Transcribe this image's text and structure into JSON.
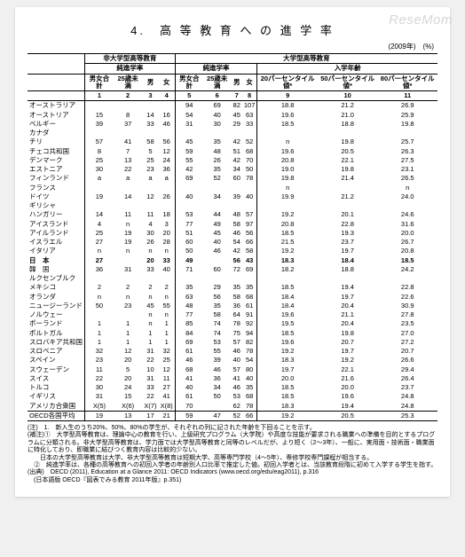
{
  "watermark": "ReseMom",
  "title": "4.　高 等 教 育 へ の 進 学 率",
  "unit": "(2009年)　(%)",
  "headers": {
    "nonUniv": "非大学型高等教育",
    "univ": "大学型高等教育",
    "enrollA": "純進学率",
    "enrollB": "純進学率",
    "age": "入学年齢",
    "sub": [
      "男女合計",
      "25歳未満",
      "男",
      "女",
      "男女合計",
      "25歳未満",
      "男",
      "女",
      "20パーセンタイル値*",
      "50パーセンタイル値*",
      "80パーセンタイル値*"
    ],
    "nums": [
      "1",
      "2",
      "3",
      "4",
      "5",
      "6",
      "7",
      "8",
      "9",
      "10",
      "11"
    ]
  },
  "rows": [
    [
      "オーストラリア",
      "",
      "",
      "",
      "",
      "94",
      "69",
      "82",
      "107",
      "18.8",
      "21.2",
      "26.9"
    ],
    [
      "オーストリア",
      "15",
      "8",
      "14",
      "16",
      "54",
      "40",
      "45",
      "63",
      "19.6",
      "21.0",
      "25.9"
    ],
    [
      "ベルギー",
      "39",
      "37",
      "33",
      "46",
      "31",
      "30",
      "29",
      "33",
      "18.5",
      "18.8",
      "19.8"
    ],
    [
      "カナダ",
      "",
      "",
      "",
      "",
      "",
      "",
      "",
      "",
      "",
      "",
      ""
    ],
    [
      "チリ",
      "57",
      "41",
      "58",
      "56",
      "45",
      "35",
      "42",
      "52",
      "n",
      "19.8",
      "25.7"
    ],
    [
      "チェコ共和国",
      "8",
      "7",
      "5",
      "12",
      "59",
      "48",
      "51",
      "68",
      "19.6",
      "20.5",
      "26.3"
    ],
    [
      "デンマーク",
      "25",
      "13",
      "25",
      "24",
      "55",
      "26",
      "42",
      "70",
      "20.8",
      "22.1",
      "27.5"
    ],
    [
      "エストニア",
      "30",
      "22",
      "23",
      "36",
      "42",
      "35",
      "34",
      "50",
      "19.0",
      "19.8",
      "23.1"
    ],
    [
      "フィンランド",
      "a",
      "a",
      "a",
      "a",
      "69",
      "52",
      "60",
      "78",
      "19.8",
      "21.4",
      "26.5"
    ],
    [
      "フランス",
      "",
      "",
      "",
      "",
      "",
      "",
      "",
      "",
      "n",
      "",
      "n"
    ],
    [
      "ドイツ",
      "19",
      "14",
      "12",
      "26",
      "40",
      "34",
      "39",
      "40",
      "19.9",
      "21.2",
      "24.0"
    ],
    [
      "ギリシャ",
      "",
      "",
      "",
      "",
      "",
      "",
      "",
      "",
      "",
      "",
      ""
    ],
    [
      "ハンガリー",
      "14",
      "11",
      "11",
      "18",
      "53",
      "44",
      "48",
      "57",
      "19.2",
      "20.1",
      "24.6"
    ],
    [
      "アイスランド",
      "4",
      "n",
      "4",
      "3",
      "77",
      "49",
      "58",
      "97",
      "20.8",
      "22.8",
      "31.6"
    ],
    [
      "アイルランド",
      "25",
      "19",
      "30",
      "20",
      "51",
      "45",
      "46",
      "56",
      "18.5",
      "19.3",
      "20.0"
    ],
    [
      "イスラエル",
      "27",
      "19",
      "26",
      "28",
      "60",
      "40",
      "54",
      "66",
      "21.5",
      "23.7",
      "26.7"
    ],
    [
      "イタリア",
      "n",
      "n",
      "n",
      "n",
      "50",
      "46",
      "42",
      "58",
      "19.2",
      "19.7",
      "20.8"
    ],
    [
      "日　本",
      "27",
      "",
      "20",
      "33",
      "49",
      "",
      "56",
      "43",
      "18.3",
      "18.4",
      "18.5"
    ],
    [
      "韓　国",
      "36",
      "31",
      "33",
      "40",
      "71",
      "60",
      "72",
      "69",
      "18.2",
      "18.8",
      "24.2"
    ],
    [
      "ルクセンブルク",
      "",
      "",
      "",
      "",
      "",
      "",
      "",
      "",
      "",
      "",
      ""
    ],
    [
      "メキシコ",
      "2",
      "2",
      "2",
      "2",
      "35",
      "29",
      "35",
      "35",
      "18.5",
      "19.4",
      "22.8"
    ],
    [
      "オランダ",
      "n",
      "n",
      "n",
      "n",
      "63",
      "56",
      "58",
      "68",
      "18.4",
      "19.7",
      "22.6"
    ],
    [
      "ニュージーランド",
      "50",
      "23",
      "45",
      "55",
      "48",
      "35",
      "36",
      "61",
      "18.4",
      "20.4",
      "30.9"
    ],
    [
      "ノルウェー",
      "",
      "",
      "n",
      "n",
      "77",
      "58",
      "64",
      "91",
      "19.6",
      "21.1",
      "27.8"
    ],
    [
      "ポーランド",
      "1",
      "1",
      "n",
      "1",
      "85",
      "74",
      "78",
      "92",
      "19.5",
      "20.4",
      "23.5"
    ],
    [
      "ポルトガル",
      "1",
      "1",
      "1",
      "1",
      "84",
      "74",
      "75",
      "94",
      "18.5",
      "19.8",
      "27.0"
    ],
    [
      "スロバキア共和国",
      "1",
      "1",
      "1",
      "1",
      "69",
      "53",
      "57",
      "82",
      "19.6",
      "20.7",
      "27.2"
    ],
    [
      "スロベニア",
      "32",
      "12",
      "31",
      "32",
      "61",
      "55",
      "46",
      "78",
      "19.2",
      "19.7",
      "20.7"
    ],
    [
      "スペイン",
      "23",
      "20",
      "22",
      "25",
      "46",
      "39",
      "40",
      "54",
      "18.3",
      "19.2",
      "26.6"
    ],
    [
      "スウェーデン",
      "11",
      "5",
      "10",
      "12",
      "68",
      "46",
      "57",
      "80",
      "19.7",
      "22.1",
      "29.4"
    ],
    [
      "スイス",
      "22",
      "20",
      "31",
      "11",
      "41",
      "36",
      "41",
      "40",
      "20.0",
      "21.6",
      "26.4"
    ],
    [
      "トルコ",
      "30",
      "24",
      "33",
      "27",
      "40",
      "34",
      "46",
      "35",
      "18.5",
      "20.0",
      "23.7"
    ],
    [
      "イギリス",
      "31",
      "15",
      "22",
      "41",
      "61",
      "50",
      "53",
      "68",
      "18.5",
      "19.6",
      "24.8"
    ],
    [
      "アメリカ合衆国",
      "X(5)",
      "X(6)",
      "X(7)",
      "X(8)",
      "70",
      "",
      "62",
      "78",
      "18.3",
      "19.4",
      "24.8"
    ],
    [
      "OECD各国平均",
      "19",
      "13",
      "17",
      "21",
      "59",
      "47",
      "52",
      "66",
      "19.2",
      "20.5",
      "25.3"
    ]
  ],
  "boldRows": [
    "日　本"
  ],
  "notes": [
    "(注)　1.　新入生のうち20%、50%、80%の学生が、それぞれの列に記された年齢を下回ることを示す。",
    "(補注)①　大学型高等教育は、理論中心の教育を行い、上級研究プログラム（大学院）や高度な技能が要求される職業への準備を目的とするプログラムに分類される。非大学型高等教育は、学力面では大学型高等教育と同等のレベルだが、より短く（2〜3年）、一般に、実用面・技術面・職業面に特化しており、即職業に結びつく教育内容は比較的少ない。",
    "　　日本の大学型高等教育は大学、非大学型高等教育は短期大学、高等専門学校（4〜5年）、専修学校専門課程が相当する。",
    "　②　純進学率は、各種の高等教育への初回入学者の年齢別人口比率で推定した値。初回入学者とは、当該教育段階に初めて入学する学生を指す。",
    "(出典)　OECD (2011), Education at a Glance 2011: OECD Indicators (www.oecd.org/edu/eag2011), p.316",
    "　(日本語版 OECD『図表でみる教育 2011年版』p.351)"
  ]
}
